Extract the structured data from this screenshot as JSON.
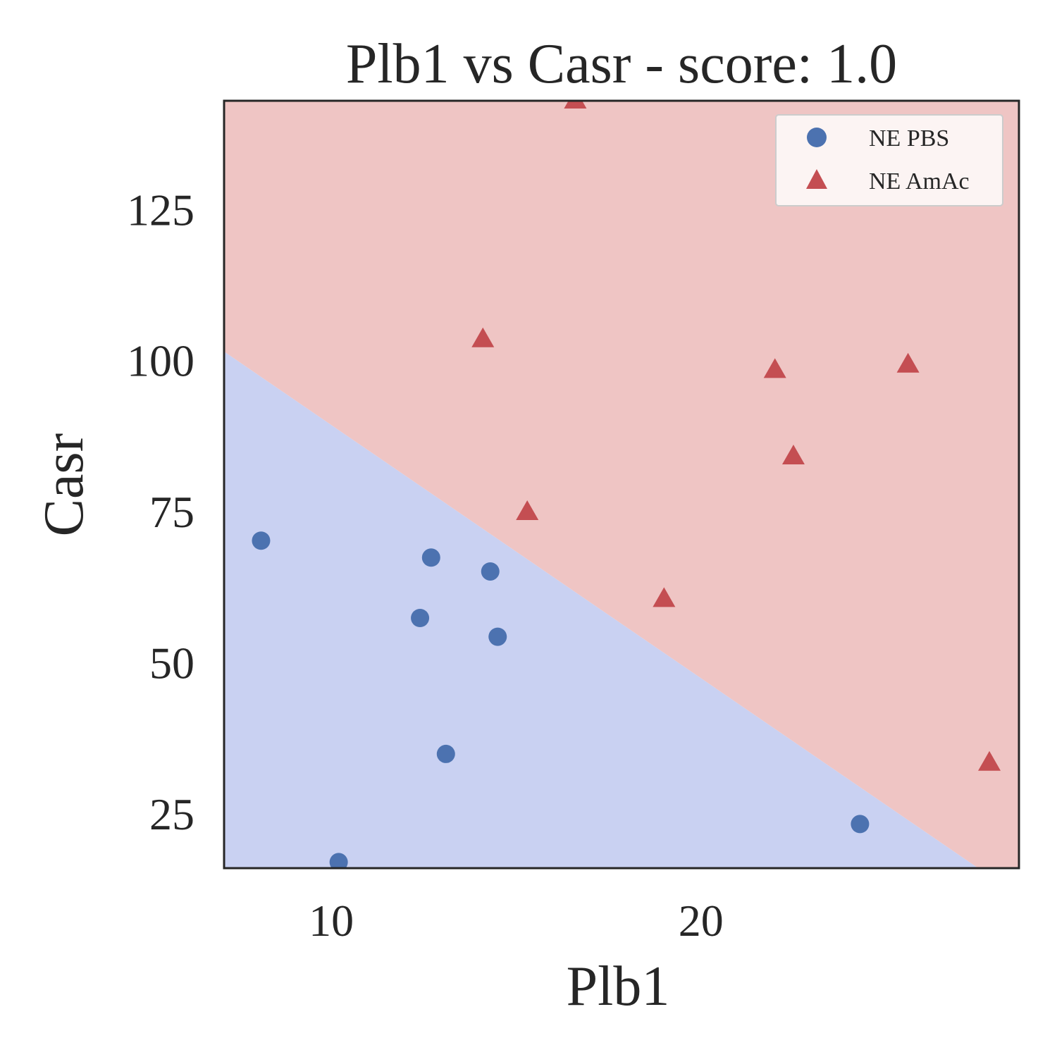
{
  "chart_data": {
    "type": "scatter",
    "title": "Plb1 vs Casr - score: 1.0",
    "xlabel": "Plb1",
    "ylabel": "Casr",
    "xlim": [
      7.1,
      28.6
    ],
    "ylim": [
      16.0,
      143.0
    ],
    "xticks": [
      10,
      20
    ],
    "yticks": [
      25,
      50,
      75,
      100,
      125
    ],
    "grid": false,
    "legend_position": "top-right",
    "decision_boundary": {
      "points": [
        [
          7.1,
          101.5
        ],
        [
          27.5,
          16.0
        ]
      ],
      "region_below_color": "#c9d1f2",
      "region_above_color": "#efc5c4"
    },
    "series": [
      {
        "name": "NE PBS",
        "marker": "circle",
        "color": "#4c72b0",
        "points": [
          [
            8.1,
            70.2
          ],
          [
            10.2,
            17.0
          ],
          [
            12.4,
            57.4
          ],
          [
            12.7,
            67.4
          ],
          [
            13.1,
            34.9
          ],
          [
            14.3,
            65.1
          ],
          [
            14.5,
            54.3
          ],
          [
            24.3,
            23.3
          ]
        ]
      },
      {
        "name": "NE AmAc",
        "marker": "triangle",
        "color": "#c44e52",
        "points": [
          [
            14.1,
            103.5
          ],
          [
            15.3,
            74.9
          ],
          [
            16.6,
            143.0
          ],
          [
            19.0,
            60.5
          ],
          [
            22.0,
            98.4
          ],
          [
            22.5,
            84.1
          ],
          [
            25.6,
            99.3
          ],
          [
            27.8,
            33.4
          ]
        ]
      }
    ]
  }
}
